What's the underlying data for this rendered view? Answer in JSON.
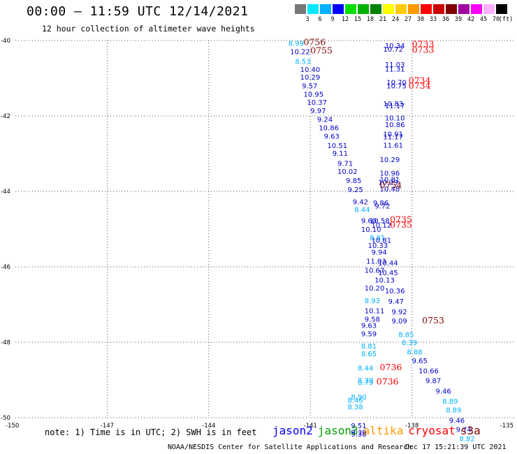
{
  "header": {
    "title": "00:00 – 11:59 UTC 12/14/2021",
    "subtitle": "12 hour collection of altimeter wave heights"
  },
  "legend": {
    "swatches": [
      {
        "label": "3",
        "color": "#777777"
      },
      {
        "label": "6",
        "color": "#00e8ff"
      },
      {
        "label": "9",
        "color": "#00b0ff"
      },
      {
        "label": "12",
        "color": "#0000ff"
      },
      {
        "label": "15",
        "color": "#00dd00"
      },
      {
        "label": "18",
        "color": "#00b000"
      },
      {
        "label": "21",
        "color": "#007f00"
      },
      {
        "label": "24",
        "color": "#ffff00"
      },
      {
        "label": "27",
        "color": "#ffcc00"
      },
      {
        "label": "30",
        "color": "#ff9900"
      },
      {
        "label": "33",
        "color": "#ff0000"
      },
      {
        "label": "36",
        "color": "#cc0000"
      },
      {
        "label": "39",
        "color": "#800000"
      },
      {
        "label": "42",
        "color": "#a000a0"
      },
      {
        "label": "45",
        "color": "#ff00ff"
      },
      {
        "label": "70",
        "color": "#ffb0ff"
      },
      {
        "label": "",
        "color": "#000000"
      }
    ],
    "unit": "(ft)"
  },
  "footer": {
    "note": "note: 1) Time is in UTC; 2) SWH is in feet",
    "satellites": [
      {
        "name": "jason2",
        "color": "#0000ff"
      },
      {
        "name": "jason3",
        "color": "#00a000"
      },
      {
        "name": "altika",
        "color": "#ff9900"
      },
      {
        "name": "cryosat",
        "color": "#ff0000"
      },
      {
        "name": "s3a",
        "color": "#800000"
      }
    ],
    "credit": "NOAA/NESDIS Center for Satellite Applications and Research",
    "timestamp": "Dec 17 15:21:39 UTC 2021"
  },
  "map": {
    "lon_range": [
      -150,
      -135
    ],
    "lat_range": [
      -50,
      -40
    ],
    "x_ticks": [
      "-150",
      "-147",
      "-144",
      "-141",
      "-138",
      "-135"
    ],
    "y_ticks": [
      "-40",
      "-42",
      "-44",
      "-46",
      "-48",
      "-50"
    ],
    "observations": [
      {
        "lon": -141.65,
        "lat": -40.14,
        "value": "8.99",
        "color": "#00b0ff"
      },
      {
        "lon": -141.6,
        "lat": -40.36,
        "value": "10.22",
        "color": "#0000cc"
      },
      {
        "lon": -141.45,
        "lat": -40.62,
        "value": "8.53",
        "color": "#00b0ff"
      },
      {
        "lon": -141.3,
        "lat": -40.83,
        "value": "10.40",
        "color": "#0000cc"
      },
      {
        "lon": -141.3,
        "lat": -41.04,
        "value": "10.29",
        "color": "#0000cc"
      },
      {
        "lon": -141.25,
        "lat": -41.27,
        "value": "9.57",
        "color": "#0000cc"
      },
      {
        "lon": -141.2,
        "lat": -41.49,
        "value": "10.95",
        "color": "#0000cc"
      },
      {
        "lon": -141.1,
        "lat": -41.7,
        "value": "10.37",
        "color": "#0000cc"
      },
      {
        "lon": -141.0,
        "lat": -41.93,
        "value": "9.97",
        "color": "#0000cc"
      },
      {
        "lon": -140.8,
        "lat": -42.16,
        "value": "9.24",
        "color": "#0000cc"
      },
      {
        "lon": -140.75,
        "lat": -42.38,
        "value": "10.86",
        "color": "#0000cc"
      },
      {
        "lon": -140.6,
        "lat": -42.6,
        "value": "9.63",
        "color": "#0000cc"
      },
      {
        "lon": -140.5,
        "lat": -42.85,
        "value": "10.51",
        "color": "#0000cc"
      },
      {
        "lon": -140.35,
        "lat": -43.06,
        "value": "9.11",
        "color": "#0000cc"
      },
      {
        "lon": -140.2,
        "lat": -43.32,
        "value": "9.71",
        "color": "#0000cc"
      },
      {
        "lon": -140.2,
        "lat": -43.54,
        "value": "10.02",
        "color": "#0000cc"
      },
      {
        "lon": -139.95,
        "lat": -43.78,
        "value": "9.85",
        "color": "#0000cc"
      },
      {
        "lon": -139.9,
        "lat": -44.02,
        "value": "9.25",
        "color": "#0000cc"
      },
      {
        "lon": -139.75,
        "lat": -44.34,
        "value": "9.42",
        "color": "#0000cc"
      },
      {
        "lon": -139.7,
        "lat": -44.55,
        "value": "8.44",
        "color": "#00b0ff"
      },
      {
        "lon": -139.5,
        "lat": -44.84,
        "value": "9.60",
        "color": "#0000cc"
      },
      {
        "lon": -139.5,
        "lat": -45.07,
        "value": "10.10",
        "color": "#0000cc"
      },
      {
        "lon": -139.25,
        "lat": -45.3,
        "value": "8.81",
        "color": "#00b0ff"
      },
      {
        "lon": -139.3,
        "lat": -45.5,
        "value": "10.33",
        "color": "#0000cc"
      },
      {
        "lon": -139.2,
        "lat": -45.68,
        "value": "9.94",
        "color": "#0000cc"
      },
      {
        "lon": -139.35,
        "lat": -45.92,
        "value": "11.03",
        "color": "#0000cc"
      },
      {
        "lon": -139.0,
        "lat": -45.96,
        "value": "10.44",
        "color": "#0000cc"
      },
      {
        "lon": -139.4,
        "lat": -46.16,
        "value": "10.67",
        "color": "#0000cc"
      },
      {
        "lon": -139.0,
        "lat": -46.22,
        "value": "10.45",
        "color": "#0000cc"
      },
      {
        "lon": -139.1,
        "lat": -46.42,
        "value": "10.13",
        "color": "#0000cc"
      },
      {
        "lon": -139.4,
        "lat": -46.63,
        "value": "10.20",
        "color": "#0000cc"
      },
      {
        "lon": -138.8,
        "lat": -46.7,
        "value": "10.36",
        "color": "#0000cc"
      },
      {
        "lon": -139.4,
        "lat": -46.96,
        "value": "8.93",
        "color": "#00b0ff"
      },
      {
        "lon": -138.7,
        "lat": -46.98,
        "value": "9.47",
        "color": "#0000cc"
      },
      {
        "lon": -139.4,
        "lat": -47.23,
        "value": "10.11",
        "color": "#0000cc"
      },
      {
        "lon": -138.6,
        "lat": -47.26,
        "value": "9.92",
        "color": "#0000cc"
      },
      {
        "lon": -139.4,
        "lat": -47.45,
        "value": "9.58",
        "color": "#0000cc"
      },
      {
        "lon": -138.6,
        "lat": -47.5,
        "value": "9.09",
        "color": "#0000cc"
      },
      {
        "lon": -139.5,
        "lat": -47.62,
        "value": "9.63",
        "color": "#0000cc"
      },
      {
        "lon": -139.5,
        "lat": -47.84,
        "value": "9.59",
        "color": "#0000cc"
      },
      {
        "lon": -138.4,
        "lat": -47.86,
        "value": "8.85",
        "color": "#00b0ff"
      },
      {
        "lon": -138.3,
        "lat": -48.07,
        "value": "8.39",
        "color": "#00b0ff"
      },
      {
        "lon": -139.5,
        "lat": -48.17,
        "value": "8.81",
        "color": "#00b0ff"
      },
      {
        "lon": -138.15,
        "lat": -48.32,
        "value": "8.88",
        "color": "#00b0ff"
      },
      {
        "lon": -139.5,
        "lat": -48.37,
        "value": "8.65",
        "color": "#00b0ff"
      },
      {
        "lon": -138.0,
        "lat": -48.56,
        "value": "9.65",
        "color": "#0000cc"
      },
      {
        "lon": -139.6,
        "lat": -48.75,
        "value": "8.44",
        "color": "#00b0ff"
      },
      {
        "lon": -137.8,
        "lat": -48.82,
        "value": "10.66",
        "color": "#0000cc"
      },
      {
        "lon": -139.6,
        "lat": -49.07,
        "value": "8.39",
        "color": "#00b0ff"
      },
      {
        "lon": -137.6,
        "lat": -49.08,
        "value": "9.87",
        "color": "#0000cc"
      },
      {
        "lon": -139.6,
        "lat": -49.13,
        "value": "8.79",
        "color": "#00b0ff"
      },
      {
        "lon": -137.3,
        "lat": -49.36,
        "value": "9.46",
        "color": "#0000cc"
      },
      {
        "lon": -139.8,
        "lat": -49.52,
        "value": "8.90",
        "color": "#00b0ff"
      },
      {
        "lon": -139.9,
        "lat": -49.6,
        "value": "8.46",
        "color": "#00b0ff"
      },
      {
        "lon": -137.1,
        "lat": -49.63,
        "value": "8.89",
        "color": "#00b0ff"
      },
      {
        "lon": -139.9,
        "lat": -49.78,
        "value": "8.38",
        "color": "#00b0ff"
      },
      {
        "lon": -137.0,
        "lat": -49.86,
        "value": "8.89",
        "color": "#00b0ff"
      },
      {
        "lon": -136.9,
        "lat": -50.14,
        "value": "9.46",
        "color": "#0000cc"
      },
      {
        "lon": -139.8,
        "lat": -50.28,
        "value": "9.51",
        "color": "#0000cc"
      },
      {
        "lon": -136.7,
        "lat": -50.38,
        "value": "9.74",
        "color": "#0000cc"
      },
      {
        "lon": -139.8,
        "lat": -50.45,
        "value": "9.39",
        "color": "#0000cc"
      },
      {
        "lon": -139.8,
        "lat": -50.5,
        "value": "9.38",
        "color": "#0000cc"
      },
      {
        "lon": -136.6,
        "lat": -50.62,
        "value": "8.82",
        "color": "#00b0ff"
      },
      {
        "lon": -138.8,
        "lat": -40.2,
        "value": "10.34",
        "color": "#0000cc"
      },
      {
        "lon": -138.85,
        "lat": -40.3,
        "value": "10.72",
        "color": "#0000cc"
      },
      {
        "lon": -138.8,
        "lat": -40.7,
        "value": "11.03",
        "color": "#0000cc"
      },
      {
        "lon": -138.8,
        "lat": -40.82,
        "value": "11.31",
        "color": "#0000cc"
      },
      {
        "lon": -138.75,
        "lat": -41.18,
        "value": "10.70",
        "color": "#0000cc"
      },
      {
        "lon": -138.75,
        "lat": -41.27,
        "value": "10.75",
        "color": "#0000cc"
      },
      {
        "lon": -138.85,
        "lat": -41.74,
        "value": "10.83",
        "color": "#0000cc"
      },
      {
        "lon": -138.8,
        "lat": -41.8,
        "value": "11.17",
        "color": "#0000cc"
      },
      {
        "lon": -138.8,
        "lat": -42.12,
        "value": "10.10",
        "color": "#0000cc"
      },
      {
        "lon": -138.8,
        "lat": -42.3,
        "value": "10.86",
        "color": "#0000cc"
      },
      {
        "lon": -138.85,
        "lat": -42.55,
        "value": "10.91",
        "color": "#0000cc"
      },
      {
        "lon": -138.85,
        "lat": -42.62,
        "value": "11.17",
        "color": "#0000cc"
      },
      {
        "lon": -138.85,
        "lat": -42.84,
        "value": "11.61",
        "color": "#0000cc"
      },
      {
        "lon": -138.95,
        "lat": -43.22,
        "value": "10.29",
        "color": "#0000cc"
      },
      {
        "lon": -138.95,
        "lat": -43.58,
        "value": "10.96",
        "color": "#0000cc"
      },
      {
        "lon": -138.95,
        "lat": -43.75,
        "value": "10.81",
        "color": "#0000cc"
      },
      {
        "lon": -139.0,
        "lat": -43.82,
        "value": "10.29",
        "color": "#0000cc"
      },
      {
        "lon": -138.95,
        "lat": -44.0,
        "value": "10.48",
        "color": "#0000cc"
      },
      {
        "lon": -139.15,
        "lat": -44.37,
        "value": "9.86",
        "color": "#0000cc"
      },
      {
        "lon": -139.1,
        "lat": -44.45,
        "value": "9.72",
        "color": "#0000cc"
      },
      {
        "lon": -139.25,
        "lat": -44.84,
        "value": "10.58",
        "color": "#0000cc"
      },
      {
        "lon": -139.2,
        "lat": -44.96,
        "value": "10.12",
        "color": "#0000cc"
      },
      {
        "lon": -139.2,
        "lat": -45.36,
        "value": "10.81",
        "color": "#0000cc"
      }
    ],
    "time_labels": [
      {
        "lon": -141.2,
        "lat": -40.12,
        "value": "0756",
        "color": "#800000"
      },
      {
        "lon": -141.0,
        "lat": -40.34,
        "value": "0755",
        "color": "#800000"
      },
      {
        "lon": -138.0,
        "lat": -40.18,
        "value": "0733",
        "color": "#ff0000"
      },
      {
        "lon": -138.0,
        "lat": -40.32,
        "value": "0733",
        "color": "#ff0000"
      },
      {
        "lon": -138.1,
        "lat": -41.14,
        "value": "0734",
        "color": "#ff0000"
      },
      {
        "lon": -138.1,
        "lat": -41.28,
        "value": "0734",
        "color": "#ff0000"
      },
      {
        "lon": -138.95,
        "lat": -43.92,
        "value": "0754",
        "color": "#800000"
      },
      {
        "lon": -138.65,
        "lat": -44.82,
        "value": "0735",
        "color": "#ff0000"
      },
      {
        "lon": -138.65,
        "lat": -44.96,
        "value": "0735",
        "color": "#ff0000"
      },
      {
        "lon": -137.7,
        "lat": -47.5,
        "value": "0753",
        "color": "#800000"
      },
      {
        "lon": -138.95,
        "lat": -48.74,
        "value": "0736",
        "color": "#ff0000"
      },
      {
        "lon": -139.05,
        "lat": -49.12,
        "value": "0736",
        "color": "#ff0000"
      }
    ]
  }
}
